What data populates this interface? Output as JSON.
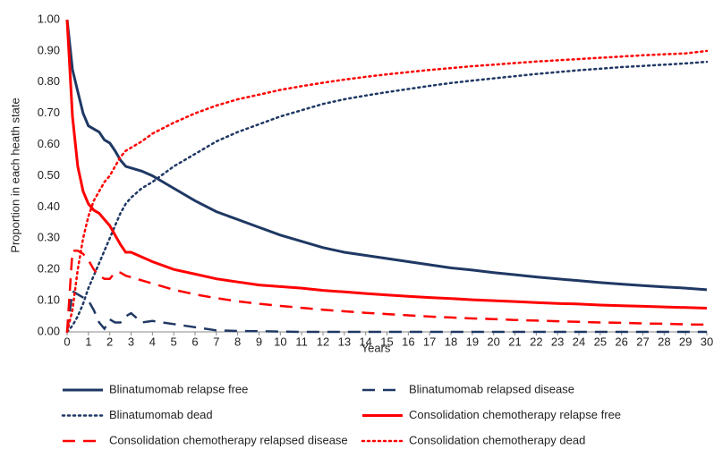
{
  "chart_data": {
    "type": "line",
    "x_label": "Years",
    "y_label": "Proportion in each heath state",
    "x": [
      0,
      0.25,
      0.5,
      0.75,
      1,
      1.25,
      1.5,
      1.75,
      2,
      2.25,
      2.5,
      2.75,
      3,
      3.5,
      4,
      5,
      6,
      7,
      8,
      9,
      10,
      11,
      12,
      13,
      14,
      15,
      16,
      17,
      18,
      19,
      20,
      21,
      22,
      23,
      24,
      25,
      26,
      27,
      28,
      29,
      30
    ],
    "xlim": [
      0,
      30
    ],
    "xticks": [
      0,
      1,
      2,
      3,
      4,
      5,
      6,
      7,
      8,
      9,
      10,
      11,
      12,
      13,
      14,
      15,
      16,
      17,
      18,
      19,
      20,
      21,
      22,
      23,
      24,
      25,
      26,
      27,
      28,
      29,
      30
    ],
    "ylim": [
      0,
      1
    ],
    "yticks": [
      {
        "value": 0,
        "label": "0.00"
      },
      {
        "value": 0.1,
        "label": "0.10"
      },
      {
        "value": 0.2,
        "label": "0.20"
      },
      {
        "value": 0.3,
        "label": "0.30"
      },
      {
        "value": 0.4,
        "label": "0.40"
      },
      {
        "value": 0.5,
        "label": "0.50"
      },
      {
        "value": 0.6,
        "label": "0.60"
      },
      {
        "value": 0.7,
        "label": "0.70"
      },
      {
        "value": 0.8,
        "label": "0.80"
      },
      {
        "value": 0.9,
        "label": "0.90"
      },
      {
        "value": 1,
        "label": "1.00"
      }
    ],
    "grid": false,
    "legend": "bottom",
    "series": [
      {
        "name": "Blinatumomab relapse free",
        "color": "#1f3864",
        "dash": "solid",
        "values": [
          1.0,
          0.84,
          0.77,
          0.7,
          0.66,
          0.65,
          0.64,
          0.615,
          0.605,
          0.58,
          0.55,
          0.53,
          0.525,
          0.515,
          0.5,
          0.46,
          0.42,
          0.385,
          0.36,
          0.335,
          0.31,
          0.29,
          0.27,
          0.255,
          0.245,
          0.235,
          0.225,
          0.215,
          0.205,
          0.198,
          0.19,
          0.183,
          0.176,
          0.17,
          0.164,
          0.158,
          0.153,
          0.148,
          0.144,
          0.14,
          0.135
        ]
      },
      {
        "name": "Blinatumomab relapsed disease",
        "color": "#1f3864",
        "dash": "dashed",
        "values": [
          0,
          0.13,
          0.12,
          0.11,
          0.1,
          0.07,
          0.03,
          0.01,
          0.04,
          0.03,
          0.03,
          0.05,
          0.06,
          0.03,
          0.035,
          0.025,
          0.015,
          0.005,
          0.003,
          0.002,
          0.001,
          0,
          0,
          0,
          0,
          0,
          0,
          0,
          0,
          0,
          0,
          0,
          0,
          0,
          0,
          0,
          0,
          0,
          0,
          0,
          0
        ]
      },
      {
        "name": "Blinatumomab dead",
        "color": "#1f3864",
        "dash": "dotted",
        "values": [
          0,
          0.02,
          0.05,
          0.09,
          0.14,
          0.18,
          0.22,
          0.26,
          0.3,
          0.34,
          0.38,
          0.41,
          0.43,
          0.46,
          0.48,
          0.53,
          0.57,
          0.61,
          0.64,
          0.665,
          0.69,
          0.71,
          0.73,
          0.745,
          0.757,
          0.768,
          0.778,
          0.788,
          0.797,
          0.805,
          0.812,
          0.819,
          0.826,
          0.832,
          0.838,
          0.843,
          0.848,
          0.852,
          0.856,
          0.86,
          0.865
        ]
      },
      {
        "name": "Consolidation chemotherapy relapse free",
        "color": "#ff0000",
        "dash": "solid",
        "values": [
          1.0,
          0.69,
          0.53,
          0.45,
          0.41,
          0.39,
          0.38,
          0.36,
          0.34,
          0.31,
          0.28,
          0.255,
          0.255,
          0.24,
          0.225,
          0.2,
          0.185,
          0.17,
          0.16,
          0.15,
          0.145,
          0.14,
          0.133,
          0.128,
          0.123,
          0.118,
          0.114,
          0.11,
          0.107,
          0.103,
          0.1,
          0.097,
          0.094,
          0.091,
          0.089,
          0.086,
          0.084,
          0.082,
          0.08,
          0.078,
          0.076
        ]
      },
      {
        "name": "Consolidation chemotherapy relapsed disease",
        "color": "#ff0000",
        "dash": "dashed",
        "values": [
          0,
          0.26,
          0.26,
          0.25,
          0.23,
          0.2,
          0.18,
          0.17,
          0.17,
          0.19,
          0.19,
          0.18,
          0.175,
          0.165,
          0.155,
          0.135,
          0.12,
          0.108,
          0.098,
          0.09,
          0.083,
          0.077,
          0.071,
          0.066,
          0.061,
          0.057,
          0.053,
          0.049,
          0.046,
          0.043,
          0.041,
          0.038,
          0.036,
          0.034,
          0.032,
          0.03,
          0.029,
          0.027,
          0.026,
          0.024,
          0.023
        ]
      },
      {
        "name": "Consolidation chemotherapy dead",
        "color": "#ff0000",
        "dash": "dotted",
        "values": [
          0,
          0.07,
          0.2,
          0.3,
          0.37,
          0.42,
          0.45,
          0.48,
          0.5,
          0.53,
          0.56,
          0.58,
          0.59,
          0.61,
          0.635,
          0.67,
          0.7,
          0.725,
          0.745,
          0.76,
          0.775,
          0.787,
          0.798,
          0.808,
          0.817,
          0.825,
          0.832,
          0.839,
          0.845,
          0.851,
          0.856,
          0.861,
          0.866,
          0.87,
          0.874,
          0.878,
          0.882,
          0.886,
          0.889,
          0.892,
          0.9
        ]
      }
    ]
  }
}
